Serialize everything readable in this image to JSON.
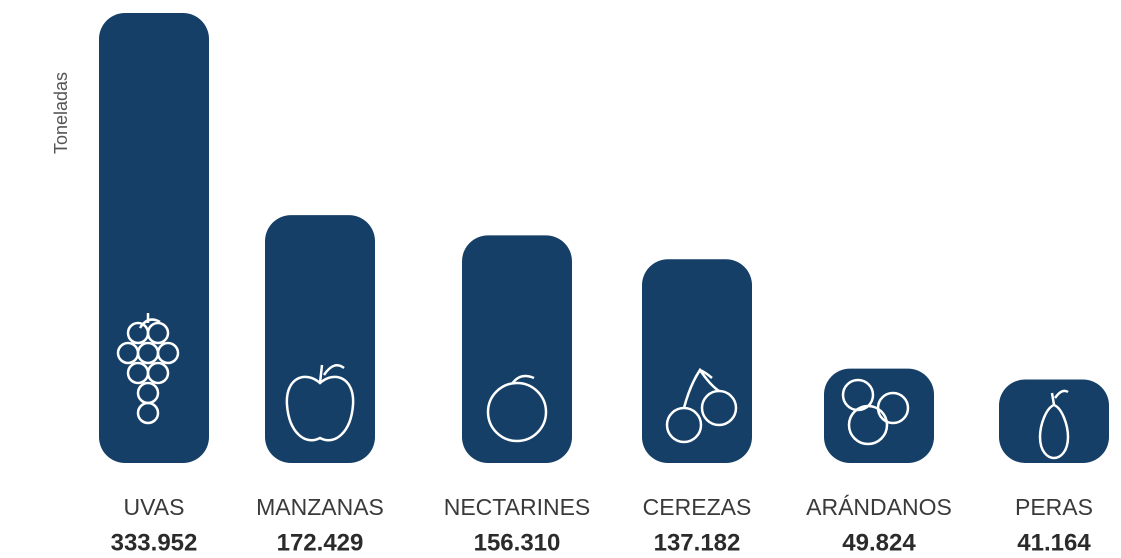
{
  "chart_data": {
    "type": "bar",
    "y_label": "Toneladas",
    "categories": [
      "UVAS",
      "MANZANAS",
      "NECTARINES",
      "CEREZAS",
      "ARÁNDANOS",
      "PERAS"
    ],
    "values": [
      333952,
      172429,
      156310,
      137182,
      49824,
      41164
    ],
    "value_labels": [
      "333.952",
      "172.429",
      "156.310",
      "137.182",
      "49.824",
      "41.164"
    ],
    "color": "#153f66"
  }
}
